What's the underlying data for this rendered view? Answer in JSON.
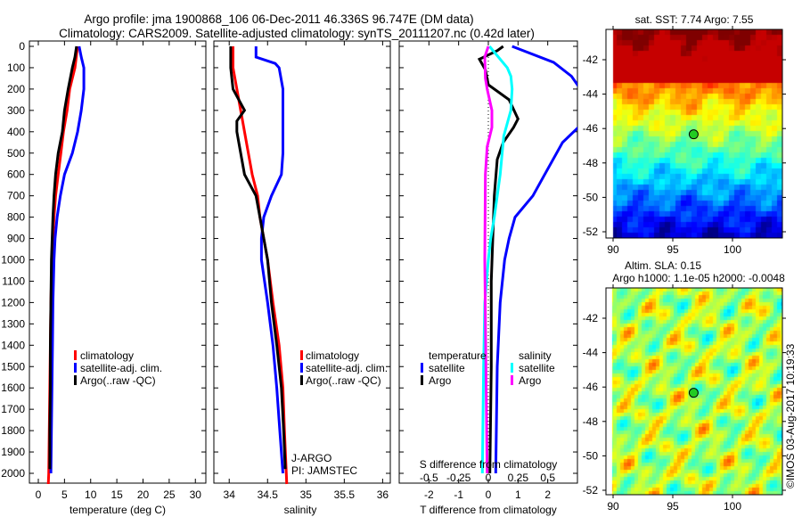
{
  "title_line1": "Argo profile: jma 1900868_106 06-Dec-2011 46.336S 96.747E (DM data)",
  "title_line2": "Climatology: CARS2009. Satellite-adjusted climatology: synTS_20111207.nc (0.42d later)",
  "colors": {
    "climatology": "#ff0000",
    "satellite": "#0000ff",
    "argo": "#000000",
    "sal_satellite": "#00ffff",
    "sal_argo": "#ff00ff"
  },
  "chart_data": [
    {
      "type": "line",
      "title": "",
      "xlabel": "temperature (deg C)",
      "ylabel": "depth",
      "xlim": [
        -1.7,
        32
      ],
      "ylim": [
        2046,
        -25
      ],
      "xticks": [
        0,
        5,
        10,
        15,
        20,
        25,
        30
      ],
      "yticks": [
        0,
        100,
        200,
        300,
        400,
        500,
        600,
        700,
        800,
        900,
        1000,
        1100,
        1200,
        1300,
        1400,
        1500,
        1600,
        1700,
        1800,
        1900,
        2000
      ],
      "legend": [
        "climatology",
        "satellite-adj. clim.",
        "Argo(..raw -QC)"
      ],
      "series": [
        {
          "name": "climatology",
          "color_key": "climatology",
          "depth": [
            0,
            100,
            200,
            300,
            400,
            500,
            600,
            700,
            800,
            900,
            1000,
            1200,
            1400,
            1600,
            1800,
            2000,
            2050
          ],
          "values": [
            7.5,
            7.0,
            6.0,
            5.5,
            4.8,
            4.3,
            3.8,
            3.3,
            3.0,
            2.8,
            2.6,
            2.4,
            2.3,
            2.2,
            2.1,
            2.0,
            1.9
          ]
        },
        {
          "name": "satellite-adj. clim.",
          "color_key": "satellite",
          "depth": [
            0,
            50,
            100,
            200,
            300,
            400,
            500,
            600,
            700,
            800,
            900,
            1000,
            1200,
            1400,
            1600,
            1800,
            2000
          ],
          "values": [
            7.8,
            8.2,
            8.7,
            8.7,
            8.2,
            7.5,
            6.5,
            5.0,
            4.2,
            3.6,
            3.2,
            3.0,
            2.8,
            2.7,
            2.6,
            2.5,
            2.4
          ]
        },
        {
          "name": "Argo(..raw -QC)",
          "color_key": "argo",
          "depth": [
            0,
            50,
            100,
            200,
            300,
            400,
            500,
            600,
            700,
            800,
            1000,
            1200,
            1400,
            1600,
            1800,
            1980
          ],
          "values": [
            7.3,
            7.0,
            6.5,
            5.7,
            5.0,
            4.6,
            3.8,
            3.3,
            3.0,
            2.8,
            2.5,
            2.4,
            2.3,
            2.3,
            2.2,
            2.2
          ]
        }
      ]
    },
    {
      "type": "line",
      "xlabel": "salinity",
      "xlim": [
        33.8,
        36.1
      ],
      "ylim": [
        2046,
        -25
      ],
      "xticks": [
        34,
        34.5,
        35,
        35.5,
        36
      ],
      "legend": [
        "climatology",
        "satellite-adj. clim.",
        "Argo(..raw -QC)"
      ],
      "annotation": [
        "J-ARGO",
        "PI: JAMSTEC"
      ],
      "series": [
        {
          "name": "climatology",
          "color_key": "climatology",
          "depth": [
            0,
            100,
            200,
            300,
            400,
            500,
            600,
            700,
            800,
            900,
            1000,
            1200,
            1400,
            1600,
            1800,
            2050
          ],
          "values": [
            34.05,
            34.05,
            34.1,
            34.15,
            34.2,
            34.25,
            34.3,
            34.37,
            34.4,
            34.45,
            34.5,
            34.57,
            34.65,
            34.7,
            34.72,
            34.75
          ]
        },
        {
          "name": "satellite-adj. clim.",
          "color_key": "satellite",
          "depth": [
            0,
            50,
            80,
            100,
            200,
            300,
            500,
            600,
            700,
            800,
            900,
            1000,
            1200,
            1400,
            1600,
            1800,
            2000
          ],
          "values": [
            34.35,
            34.35,
            34.6,
            34.65,
            34.7,
            34.7,
            34.7,
            34.68,
            34.55,
            34.45,
            34.42,
            34.42,
            34.5,
            34.57,
            34.62,
            34.66,
            34.7
          ]
        },
        {
          "name": "Argo(..raw -QC)",
          "color_key": "argo",
          "depth": [
            0,
            100,
            200,
            300,
            350,
            400,
            500,
            600,
            700,
            800,
            900,
            1000,
            1200,
            1400,
            1600,
            1800,
            1980
          ],
          "values": [
            34.02,
            34.02,
            34.05,
            34.2,
            34.1,
            34.1,
            34.15,
            34.2,
            34.35,
            34.4,
            34.45,
            34.5,
            34.55,
            34.62,
            34.68,
            34.71,
            34.73
          ]
        }
      ]
    },
    {
      "type": "line",
      "xlabel": "T difference from climatology",
      "x2label": "S difference from climatology",
      "xlim": [
        -3,
        3
      ],
      "x2lim": [
        -0.75,
        0.75
      ],
      "xticks": [
        -2,
        -1,
        0,
        1,
        2
      ],
      "x2ticks": [
        "-0.5",
        "-0.25",
        "0",
        "0.25",
        "0.5"
      ],
      "ylim": [
        2046,
        -25
      ],
      "legend": {
        "temperature_title": "temperature",
        "salinity_title": "salinity",
        "items": [
          "satellite",
          "Argo",
          "satellite",
          "Argo"
        ]
      },
      "series": [
        {
          "name": "temperature satellite",
          "axis": "T",
          "color_key": "satellite",
          "depth": [
            0,
            75,
            140,
            200,
            370,
            450,
            600,
            700,
            800,
            900,
            1000,
            1200,
            1500,
            2000
          ],
          "values": [
            0.8,
            2.2,
            2.8,
            3.1,
            3.1,
            2.5,
            1.9,
            1.5,
            0.9,
            0.7,
            0.55,
            0.4,
            0.3,
            0.25
          ]
        },
        {
          "name": "temperature Argo",
          "axis": "T",
          "color_key": "argo",
          "depth": [
            0,
            20,
            60,
            110,
            180,
            250,
            340,
            380,
            450,
            530,
            700,
            900,
            1100,
            1500,
            2000
          ],
          "values": [
            0.5,
            0.3,
            -0.3,
            -0.1,
            0.0,
            0.7,
            1.0,
            0.85,
            0.5,
            0.3,
            0.2,
            0.15,
            0.1,
            0.1,
            0.05
          ]
        },
        {
          "name": "salinity satellite",
          "axis": "S",
          "color_key": "sal_satellite",
          "depth": [
            0,
            100,
            140,
            200,
            300,
            420,
            600,
            800,
            900,
            1000,
            1200,
            1500,
            2000
          ],
          "values": [
            0.01,
            0.16,
            0.19,
            0.2,
            0.19,
            0.13,
            0.1,
            0.05,
            0.02,
            0.0,
            -0.03,
            -0.04,
            -0.05
          ]
        },
        {
          "name": "salinity Argo",
          "axis": "S",
          "color_key": "sal_argo",
          "depth": [
            0,
            50,
            150,
            200,
            300,
            380,
            470,
            600,
            1000,
            1500,
            2000
          ],
          "values": [
            0.0,
            -0.03,
            -0.025,
            -0.01,
            0.03,
            0.03,
            -0.01,
            -0.025,
            -0.03,
            -0.02,
            -0.01
          ]
        }
      ]
    }
  ],
  "maps": [
    {
      "title": "sat. SST: 7.74 Argo: 7.55",
      "lat_ticks": [
        "-42",
        "-44",
        "-46",
        "-48",
        "-50",
        "-52"
      ],
      "lon_ticks": [
        "90",
        "95",
        "100"
      ],
      "lat_values": [
        -42,
        -44,
        -46,
        -48,
        -50,
        -52
      ],
      "lon_values": [
        90,
        95,
        100
      ],
      "float_lon": 96.747,
      "float_lat": -46.336
    },
    {
      "title_line1": "Altim. SLA: 0.15",
      "title_line2": "Argo h1000: 1.1e-05 h2000: -0.0048",
      "lat_ticks": [
        "-42",
        "-44",
        "-46",
        "-48",
        "-50",
        "-52"
      ],
      "lon_ticks": [
        "90",
        "95",
        "100"
      ],
      "lat_values": [
        -42,
        -44,
        -46,
        -48,
        -50,
        -52
      ],
      "lon_values": [
        90,
        95,
        100
      ],
      "float_lon": 96.747,
      "float_lat": -46.336
    }
  ],
  "credit": "©IMOS 03-Aug-2017 10:19:33"
}
